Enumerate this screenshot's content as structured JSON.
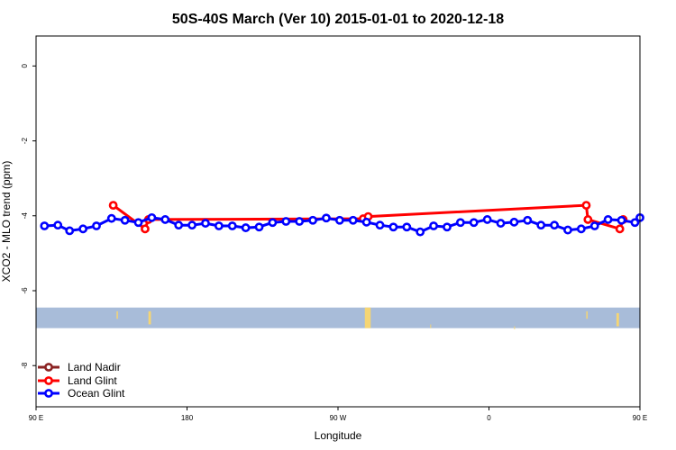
{
  "chart_data": {
    "type": "line",
    "title": "50S-40S March (Ver 10)   2015-01-01 to 2020-12-18",
    "xlabel": "Longitude",
    "ylabel": "XCO2 - MLO trend (ppm)",
    "xlim": [
      90,
      450
    ],
    "ylim": [
      -9.1,
      0.8
    ],
    "x_ticks": [
      {
        "value": 90,
        "label": "90 E"
      },
      {
        "value": 180,
        "label": "180"
      },
      {
        "value": 270,
        "label": "90 W"
      },
      {
        "value": 360,
        "label": "0"
      },
      {
        "value": 450,
        "label": "90 E"
      }
    ],
    "y_ticks": [
      {
        "value": 0,
        "label": "0"
      },
      {
        "value": -2,
        "label": "-2"
      },
      {
        "value": -4,
        "label": "-4"
      },
      {
        "value": -6,
        "label": "-6"
      },
      {
        "value": -8,
        "label": "-8"
      }
    ],
    "map_band": {
      "ylim": [
        -6.45,
        -7.0
      ],
      "ocean_color": "#a8bcd9",
      "land_color": "#f5d574"
    },
    "series": [
      {
        "name": "Land Nadir",
        "color": "#8b2323",
        "points": []
      },
      {
        "name": "Land Glint",
        "color": "#ff0000",
        "points": [
          [
            136,
            -3.72
          ],
          [
            155,
            -4.35
          ],
          [
            157,
            -4.1
          ],
          [
            285,
            -4.08
          ],
          [
            288,
            -4.02
          ],
          [
            418,
            -3.72
          ],
          [
            419,
            -4.1
          ],
          [
            438,
            -4.35
          ],
          [
            440,
            -4.1
          ]
        ]
      },
      {
        "name": "Ocean Glint",
        "color": "#0000ff",
        "points": [
          [
            95,
            -4.27
          ],
          [
            103,
            -4.25
          ],
          [
            110,
            -4.4
          ],
          [
            118,
            -4.35
          ],
          [
            126,
            -4.27
          ],
          [
            135,
            -4.07
          ],
          [
            143,
            -4.12
          ],
          [
            151,
            -4.18
          ],
          [
            159,
            -4.05
          ],
          [
            167,
            -4.1
          ],
          [
            175,
            -4.25
          ],
          [
            183,
            -4.25
          ],
          [
            191,
            -4.2
          ],
          [
            199,
            -4.27
          ],
          [
            207,
            -4.27
          ],
          [
            215,
            -4.32
          ],
          [
            223,
            -4.3
          ],
          [
            231,
            -4.18
          ],
          [
            239,
            -4.15
          ],
          [
            247,
            -4.15
          ],
          [
            255,
            -4.12
          ],
          [
            263,
            -4.06
          ],
          [
            271,
            -4.12
          ],
          [
            279,
            -4.12
          ],
          [
            287,
            -4.17
          ],
          [
            295,
            -4.25
          ],
          [
            303,
            -4.3
          ],
          [
            311,
            -4.3
          ],
          [
            319,
            -4.43
          ],
          [
            327,
            -4.27
          ],
          [
            335,
            -4.3
          ],
          [
            343,
            -4.18
          ],
          [
            351,
            -4.18
          ],
          [
            359,
            -4.1
          ],
          [
            367,
            -4.2
          ],
          [
            375,
            -4.17
          ],
          [
            383,
            -4.12
          ],
          [
            391,
            -4.25
          ],
          [
            399,
            -4.25
          ],
          [
            407,
            -4.38
          ],
          [
            415,
            -4.35
          ],
          [
            423,
            -4.27
          ],
          [
            431,
            -4.1
          ],
          [
            439,
            -4.12
          ],
          [
            447,
            -4.18
          ],
          [
            450,
            -4.05
          ]
        ]
      }
    ],
    "legend_position": "bottom-left"
  }
}
